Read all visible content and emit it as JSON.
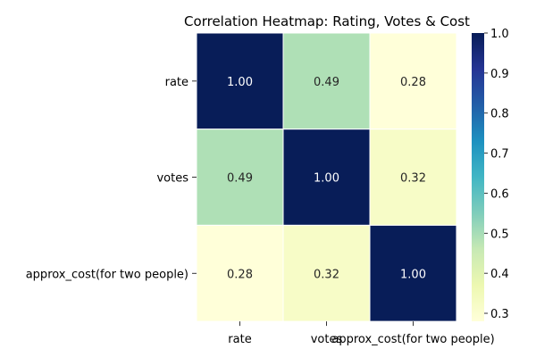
{
  "chart_data": {
    "type": "heatmap",
    "title": "Correlation Heatmap: Rating, Votes & Cost",
    "rows": [
      "rate",
      "votes",
      "approx_cost(for two people)"
    ],
    "columns": [
      "rate",
      "votes",
      "approx_cost(for two people)"
    ],
    "values": [
      [
        1.0,
        0.49,
        0.28
      ],
      [
        0.49,
        1.0,
        0.32
      ],
      [
        0.28,
        0.32,
        1.0
      ]
    ],
    "value_labels": [
      [
        "1.00",
        "0.49",
        "0.28"
      ],
      [
        "0.49",
        "1.00",
        "0.32"
      ],
      [
        "0.28",
        "0.32",
        "1.00"
      ]
    ],
    "colormap": "YlGnBu",
    "colorbar": {
      "range": [
        0.28,
        1.0
      ],
      "ticks": [
        0.3,
        0.4,
        0.5,
        0.6,
        0.7,
        0.8,
        0.9,
        1.0
      ],
      "tick_labels": [
        "0.3",
        "0.4",
        "0.5",
        "0.6",
        "0.7",
        "0.8",
        "0.9",
        "1.0"
      ],
      "placement": "right"
    },
    "annotation_colors": {
      "light": "#ffffff",
      "dark": "#262626"
    },
    "grid_line_color": "#ffffff"
  }
}
